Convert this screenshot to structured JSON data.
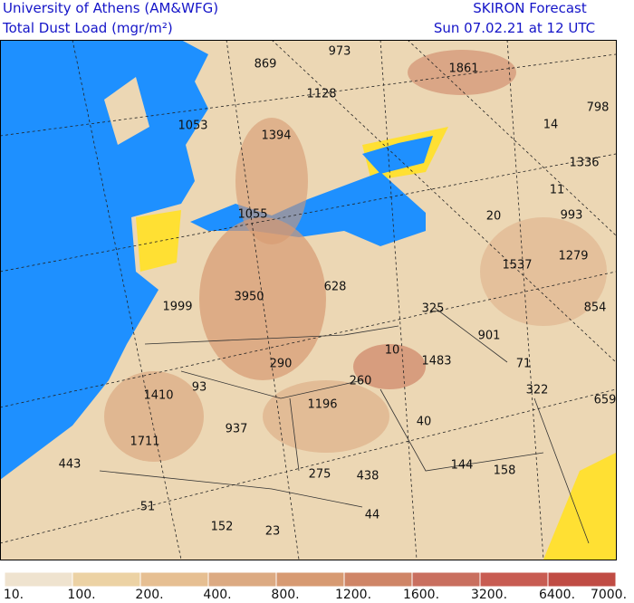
{
  "header": {
    "institution": "University of Athens (AM&WFG)",
    "quantity": "Total Dust Load (mgr/m²)",
    "model": "SKIRON Forecast",
    "valid_time": "Sun 07.02.21 at 12 UTC"
  },
  "map": {
    "labels": [
      "973",
      "869",
      "1861",
      "1128",
      "798",
      "1053",
      "14",
      "1394",
      "1336",
      "11",
      "1055",
      "20",
      "993",
      "1537",
      "1279",
      "3950",
      "628",
      "1999",
      "325",
      "854",
      "901",
      "10",
      "1483",
      "290",
      "71",
      "260",
      "93",
      "1410",
      "322",
      "659",
      "1196",
      "40",
      "937",
      "1711",
      "443",
      "144",
      "158",
      "275",
      "438",
      "51",
      "44",
      "152",
      "23"
    ]
  },
  "legend": {
    "labels": [
      "10.",
      "100.",
      "200.",
      "400.",
      "800.",
      "1200.",
      "1600.",
      "3200.",
      "6400.",
      "7000."
    ],
    "colors": [
      "#efe3cf",
      "#ecd2a4",
      "#e6bf92",
      "#dcaa82",
      "#d79a72",
      "#cf8567",
      "#c96f5f",
      "#c85c52",
      "#c04c44"
    ]
  }
}
